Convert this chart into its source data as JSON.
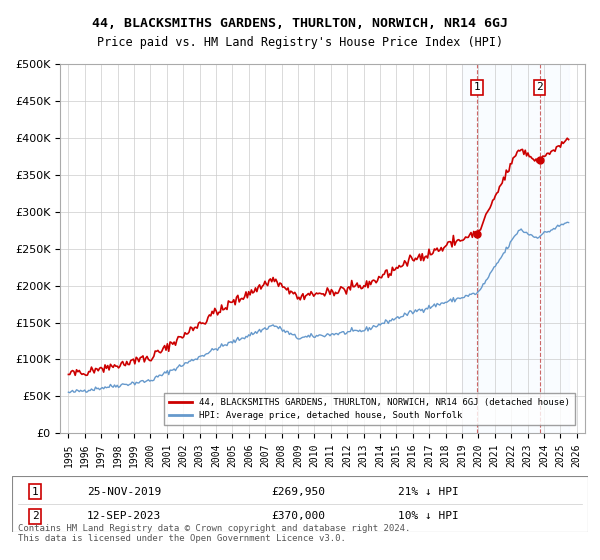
{
  "title": "44, BLACKSMITHS GARDENS, THURLTON, NORWICH, NR14 6GJ",
  "subtitle": "Price paid vs. HM Land Registry's House Price Index (HPI)",
  "legend_label_red": "44, BLACKSMITHS GARDENS, THURLTON, NORWICH, NR14 6GJ (detached house)",
  "legend_label_blue": "HPI: Average price, detached house, South Norfolk",
  "annotation1_label": "1",
  "annotation1_date": "25-NOV-2019",
  "annotation1_price": "£269,950",
  "annotation1_hpi": "21% ↓ HPI",
  "annotation2_label": "2",
  "annotation2_date": "12-SEP-2023",
  "annotation2_price": "£370,000",
  "annotation2_hpi": "10% ↓ HPI",
  "footer": "Contains HM Land Registry data © Crown copyright and database right 2024.\nThis data is licensed under the Open Government Licence v3.0.",
  "ylim": [
    0,
    500000
  ],
  "yticks": [
    0,
    50000,
    100000,
    150000,
    200000,
    250000,
    300000,
    350000,
    400000,
    450000,
    500000
  ],
  "xlabel_years": [
    "1995",
    "1996",
    "1997",
    "1998",
    "1999",
    "2000",
    "2001",
    "2002",
    "2003",
    "2004",
    "2005",
    "2006",
    "2007",
    "2008",
    "2009",
    "2010",
    "2011",
    "2012",
    "2013",
    "2014",
    "2015",
    "2016",
    "2017",
    "2018",
    "2019",
    "2020",
    "2021",
    "2022",
    "2023",
    "2024",
    "2025",
    "2026"
  ],
  "red_color": "#cc0000",
  "blue_color": "#6699cc",
  "background_color": "#ffffff",
  "shade_color": "#ddeeff",
  "annotation_marker_color": "#cc0000",
  "grid_color": "#cccccc"
}
